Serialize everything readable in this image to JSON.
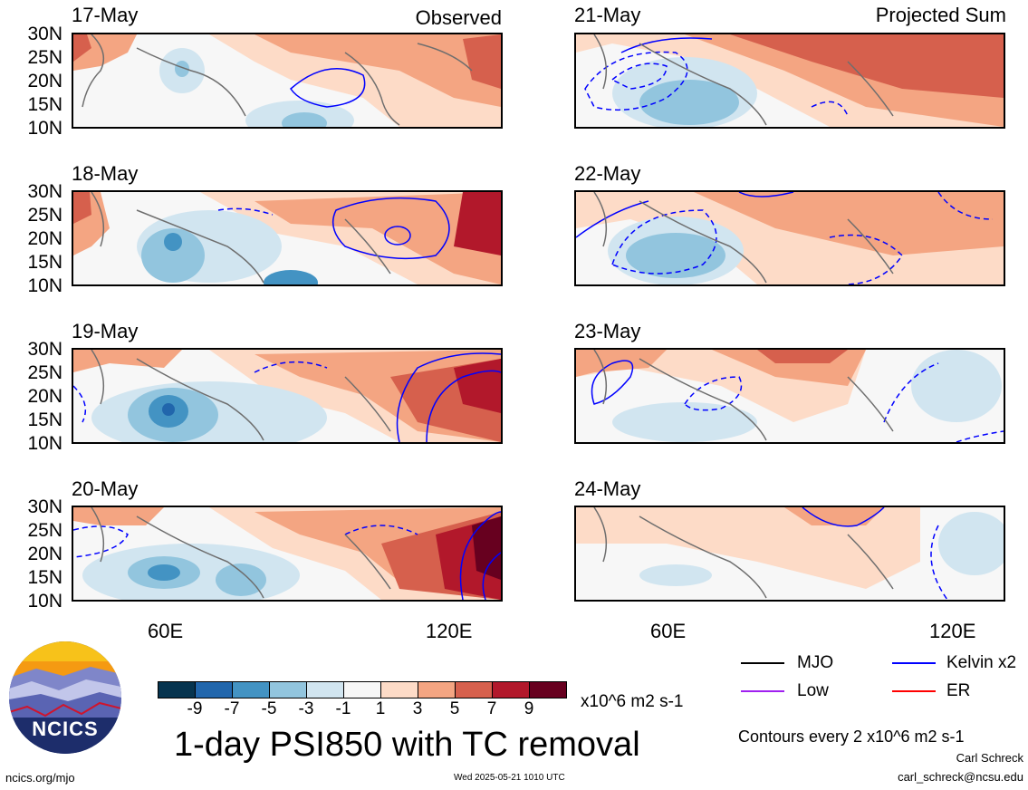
{
  "header": {
    "left_label": "Observed",
    "right_label": "Projected Sum"
  },
  "panels": {
    "observed": [
      "17-May",
      "18-May",
      "19-May",
      "20-May"
    ],
    "projected": [
      "21-May",
      "22-May",
      "23-May",
      "24-May"
    ]
  },
  "axes": {
    "lat_ticks": [
      "30N",
      "25N",
      "20N",
      "15N",
      "10N"
    ],
    "lon_ticks": [
      "60E",
      "120E"
    ]
  },
  "colorbar": {
    "colors": [
      "#06344f",
      "#2166ac",
      "#4393c3",
      "#92c5de",
      "#d1e5f0",
      "#f7f7f7",
      "#fddbc7",
      "#f4a582",
      "#d6604d",
      "#b2182b",
      "#67001f"
    ],
    "ticks": [
      "-9",
      "-7",
      "-5",
      "-3",
      "-1",
      "1",
      "3",
      "5",
      "7",
      "9"
    ],
    "units": "x10^6 m2 s-1"
  },
  "title": "1-day PSI850 with TC removal",
  "logo": {
    "text": "NCICS"
  },
  "legend": {
    "items": [
      {
        "label": "MJO",
        "color": "#000000"
      },
      {
        "label": "Kelvin x2",
        "color": "#0000ff"
      },
      {
        "label": "Low",
        "color": "#a020f0"
      },
      {
        "label": "ER",
        "color": "#ff0000"
      }
    ],
    "contour_note": "Contours every 2 x10^6 m2 s-1"
  },
  "footer": {
    "url": "ncics.org/mjo",
    "timestamp": "Wed 2025-05-21 1010 UTC",
    "author": "Carl Schreck",
    "email": "carl_schreck@ncsu.edu"
  }
}
